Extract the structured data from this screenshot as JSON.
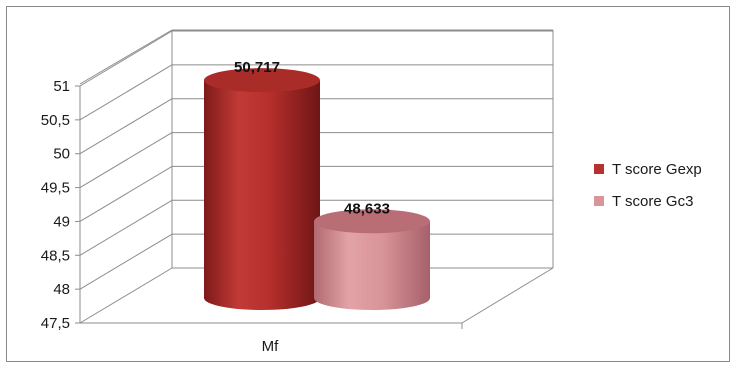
{
  "chart_data": {
    "type": "bar",
    "style": "3d-cylinder",
    "categories": [
      "Mf"
    ],
    "series": [
      {
        "name": "T score Gexp",
        "values": [
          50.717
        ],
        "label": "50,717",
        "color": "#b7322f"
      },
      {
        "name": "T score Gc3",
        "values": [
          48.633
        ],
        "label": "48,633",
        "color": "#d9959a"
      }
    ],
    "ylim": [
      47.5,
      51
    ],
    "ytick_step": 0.5,
    "yticks": [
      "47,5",
      "48",
      "48,5",
      "49",
      "49,5",
      "50",
      "50,5",
      "51"
    ],
    "grid": true,
    "legend_position": "right"
  }
}
